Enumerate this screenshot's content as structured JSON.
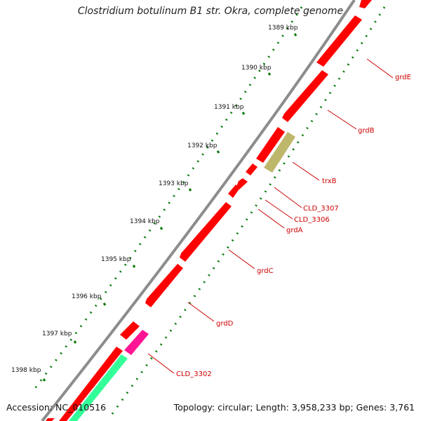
{
  "title": "Clostridium botulinum B1 str. Okra, complete genome",
  "footer": {
    "accession": "Accession: NC_010516",
    "summary": "Topology: circular; Length: 3,958,233 bp; Genes: 3,761"
  },
  "ticks": [
    {
      "label": "1389 kbp"
    },
    {
      "label": "1390 kbp"
    },
    {
      "label": "1391 kbp"
    },
    {
      "label": "1392 kbp"
    },
    {
      "label": "1393 kbp"
    },
    {
      "label": "1394 kbp"
    },
    {
      "label": "1395 kbp"
    },
    {
      "label": "1396 kbp"
    },
    {
      "label": "1397 kbp"
    },
    {
      "label": "1398 kbp"
    }
  ],
  "genes": [
    {
      "label": "grdE"
    },
    {
      "label": "grdB"
    },
    {
      "label": "trxB"
    },
    {
      "label": "CLD_3307"
    },
    {
      "label": "CLD_3306"
    },
    {
      "label": "grdA"
    },
    {
      "label": "grdC"
    },
    {
      "label": "grdD"
    },
    {
      "label": "CLD_3302"
    }
  ],
  "colors": {
    "cds": "#ff0000",
    "trna": "#bdb76b",
    "misc": "#ff1493",
    "aux": "#33ff99",
    "backbone": "#8c8c8c",
    "gc_dots": "#0a7a0a",
    "label": "#cc0000"
  }
}
